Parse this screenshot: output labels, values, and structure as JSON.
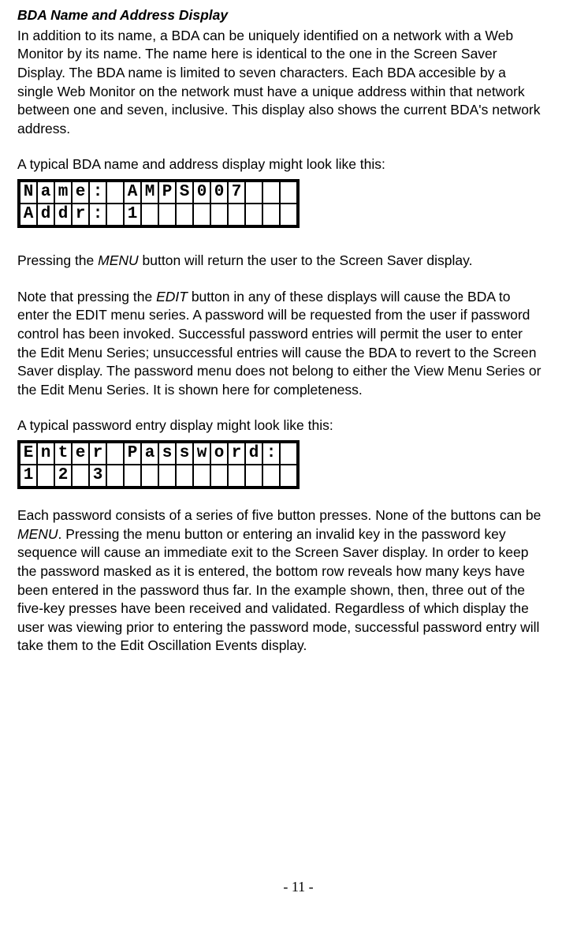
{
  "title": "BDA Name and Address Display",
  "p1_a": " In addition to its name, a BDA can be uniquely identified on a network with a Web Monitor by its name.  The name here is identical to the one in the Screen Saver Display.  The BDA name is limited to seven characters.  Each BDA accesible by a single Web Monitor on the network must have a unique address within that network between one and seven, inclusive.  This display also shows the current  BDA's network address.",
  "p2": "A typical BDA name and address display might look like this:",
  "lcd1": {
    "rows": [
      [
        "N",
        "a",
        "m",
        "e",
        ":",
        " ",
        "A",
        "M",
        "P",
        "S",
        "0",
        "0",
        "7",
        " ",
        " ",
        " "
      ],
      [
        "A",
        "d",
        "d",
        "r",
        ":",
        " ",
        "1",
        " ",
        " ",
        " ",
        " ",
        " ",
        " ",
        " ",
        " ",
        " "
      ]
    ]
  },
  "p3_pre": "Pressing the ",
  "p3_menu": "MENU",
  "p3_post": " button will return the user to the Screen Saver display.",
  "p4_a": "Note that pressing the ",
  "p4_edit": "EDIT",
  "p4_b": " button in any of these displays will cause the BDA to enter the EDIT menu series.  A password will be requested from the user if password control has been invoked.  Successful password entries will permit the user to enter the Edit Menu Series; unsuccessful entries will cause the BDA to revert to the Screen Saver display.  The password menu does not belong to either the View Menu Series or the Edit Menu Series.  It is shown here for completeness.",
  "p5": "A typical password entry display might look like this:",
  "lcd2": {
    "rows": [
      [
        "E",
        "n",
        "t",
        "e",
        "r",
        " ",
        "P",
        "a",
        "s",
        "s",
        "w",
        "o",
        "r",
        "d",
        ":",
        " "
      ],
      [
        "1",
        " ",
        "2",
        " ",
        "3",
        " ",
        " ",
        " ",
        " ",
        " ",
        " ",
        " ",
        " ",
        " ",
        " ",
        " "
      ]
    ]
  },
  "p6_a": "Each password consists of a series of five button presses.  None of the buttons can be ",
  "p6_menu": "MENU",
  "p6_b": ".   Pressing the menu button or entering an invalid key in the password key sequence will cause an immediate exit to the Screen Saver display.  In order to keep the password masked as it is entered, the bottom row reveals how many keys have been entered in the password thus far.  In the example shown, then, three out of the five-key presses have been received and validated.  Regardless of which display the user was viewing prior to entering the password mode, successful password entry will take them to the Edit Oscillation Events display.",
  "page_num": "- 11 -"
}
